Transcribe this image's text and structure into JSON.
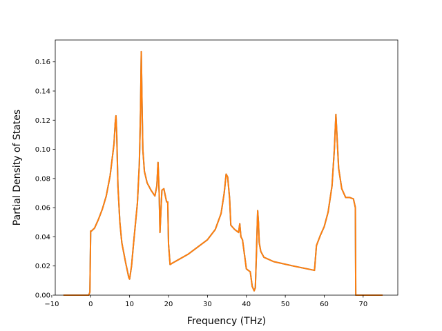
{
  "chart_data": {
    "type": "line",
    "title": "",
    "xlabel": "Frequency (THz)",
    "ylabel": "Partial Density of States",
    "xlim": [
      -9.1,
      78.9
    ],
    "ylim": [
      0.0,
      0.175
    ],
    "xticks": [
      -10,
      0,
      10,
      20,
      30,
      40,
      50,
      60,
      70
    ],
    "xtick_labels": [
      "−10",
      "0",
      "10",
      "20",
      "30",
      "40",
      "50",
      "60",
      "70"
    ],
    "yticks": [
      0.0,
      0.02,
      0.04,
      0.06,
      0.08,
      0.1,
      0.12,
      0.14,
      0.16
    ],
    "ytick_labels": [
      "0.00",
      "0.02",
      "0.04",
      "0.06",
      "0.08",
      "0.10",
      "0.12",
      "0.14",
      "0.16"
    ],
    "grid": false,
    "legend": false,
    "series": [
      {
        "color": "#1f77b4",
        "x": [
          -7.0,
          -0.5,
          -0.2,
          0.0,
          0.2,
          1.0,
          2.0,
          3.0,
          4.0,
          5.0,
          5.5,
          6.0,
          6.3,
          6.5,
          6.7,
          7.0,
          7.5,
          8.0,
          9.0,
          9.8,
          10.0,
          10.5,
          11.0,
          12.0,
          12.5,
          12.8,
          13.0,
          13.2,
          13.4,
          13.8,
          14.5,
          15.5,
          16.5,
          17.0,
          17.3,
          17.6,
          17.8,
          18.0,
          18.3,
          18.8,
          19.5,
          19.8,
          20.0,
          20.4,
          21.0,
          25.0,
          30.0,
          32.0,
          33.5,
          34.3,
          34.8,
          35.2,
          35.7,
          36.0,
          37.0,
          38.0,
          38.3,
          38.6,
          39.0,
          39.5,
          40.0,
          41.0,
          41.5,
          42.0,
          42.3,
          42.6,
          42.9,
          43.1,
          43.3,
          43.7,
          44.5,
          47.0,
          52.0,
          57.5,
          58.0,
          59.0,
          60.0,
          61.0,
          62.0,
          62.6,
          63.0,
          63.3,
          63.7,
          64.5,
          65.5,
          66.5,
          67.5,
          68.0,
          68.1,
          68.3,
          75.0
        ],
        "y": [
          0.0,
          0.0,
          0.002,
          0.044,
          0.044,
          0.046,
          0.052,
          0.059,
          0.068,
          0.082,
          0.093,
          0.104,
          0.118,
          0.123,
          0.11,
          0.075,
          0.05,
          0.036,
          0.022,
          0.012,
          0.011,
          0.02,
          0.035,
          0.063,
          0.09,
          0.125,
          0.167,
          0.13,
          0.1,
          0.085,
          0.077,
          0.072,
          0.068,
          0.075,
          0.091,
          0.07,
          0.043,
          0.055,
          0.072,
          0.073,
          0.064,
          0.064,
          0.035,
          0.021,
          0.022,
          0.028,
          0.038,
          0.045,
          0.056,
          0.07,
          0.083,
          0.081,
          0.066,
          0.048,
          0.045,
          0.043,
          0.049,
          0.04,
          0.038,
          0.028,
          0.018,
          0.016,
          0.006,
          0.003,
          0.005,
          0.03,
          0.058,
          0.05,
          0.036,
          0.03,
          0.026,
          0.023,
          0.02,
          0.017,
          0.034,
          0.041,
          0.047,
          0.057,
          0.075,
          0.1,
          0.124,
          0.108,
          0.087,
          0.073,
          0.067,
          0.067,
          0.066,
          0.06,
          0.0,
          0.0,
          0.0
        ]
      },
      {
        "color": "#ff7f0e",
        "x": [
          -7.0,
          -0.5,
          -0.2,
          0.0,
          0.2,
          1.0,
          2.0,
          3.0,
          4.0,
          5.0,
          5.5,
          6.0,
          6.3,
          6.5,
          6.7,
          7.0,
          7.5,
          8.0,
          9.0,
          9.8,
          10.0,
          10.5,
          11.0,
          12.0,
          12.5,
          12.8,
          13.0,
          13.2,
          13.4,
          13.8,
          14.5,
          15.5,
          16.5,
          17.0,
          17.3,
          17.6,
          17.8,
          18.0,
          18.3,
          18.8,
          19.5,
          19.8,
          20.0,
          20.4,
          21.0,
          25.0,
          30.0,
          32.0,
          33.5,
          34.3,
          34.8,
          35.2,
          35.7,
          36.0,
          37.0,
          38.0,
          38.3,
          38.6,
          39.0,
          39.5,
          40.0,
          41.0,
          41.5,
          42.0,
          42.3,
          42.6,
          42.9,
          43.1,
          43.3,
          43.7,
          44.5,
          47.0,
          52.0,
          57.5,
          58.0,
          59.0,
          60.0,
          61.0,
          62.0,
          62.6,
          63.0,
          63.3,
          63.7,
          64.5,
          65.5,
          66.5,
          67.5,
          68.0,
          68.1,
          68.3,
          75.0
        ],
        "y": [
          0.0,
          0.0,
          0.002,
          0.044,
          0.044,
          0.046,
          0.052,
          0.059,
          0.068,
          0.082,
          0.093,
          0.104,
          0.118,
          0.123,
          0.11,
          0.075,
          0.05,
          0.036,
          0.022,
          0.012,
          0.011,
          0.02,
          0.035,
          0.063,
          0.09,
          0.125,
          0.167,
          0.13,
          0.1,
          0.085,
          0.077,
          0.072,
          0.068,
          0.075,
          0.091,
          0.07,
          0.043,
          0.055,
          0.072,
          0.073,
          0.064,
          0.064,
          0.035,
          0.021,
          0.022,
          0.028,
          0.038,
          0.045,
          0.056,
          0.07,
          0.083,
          0.081,
          0.066,
          0.048,
          0.045,
          0.043,
          0.049,
          0.04,
          0.038,
          0.028,
          0.018,
          0.016,
          0.006,
          0.003,
          0.005,
          0.03,
          0.058,
          0.05,
          0.036,
          0.03,
          0.026,
          0.023,
          0.02,
          0.017,
          0.034,
          0.041,
          0.047,
          0.057,
          0.075,
          0.1,
          0.124,
          0.108,
          0.087,
          0.073,
          0.067,
          0.067,
          0.066,
          0.06,
          0.0,
          0.0,
          0.0
        ]
      }
    ]
  }
}
